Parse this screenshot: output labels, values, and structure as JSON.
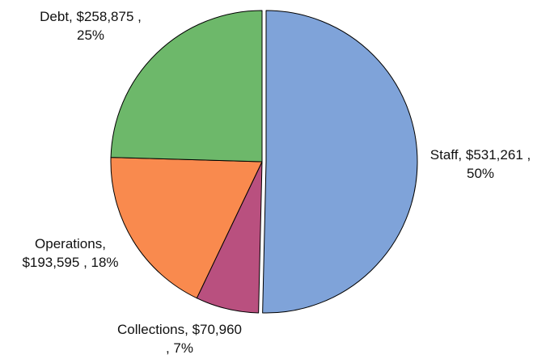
{
  "chart_data": {
    "type": "pie",
    "title": "",
    "slices": [
      {
        "label": "Staff",
        "value": 531261,
        "value_text": "$531,261",
        "percent_text": "50%",
        "color": "#7FA3D9",
        "exploded": true,
        "label_lines": [
          "Staff, $531,261 ,",
          "50%"
        ]
      },
      {
        "label": "Collections",
        "value": 70960,
        "value_text": "$70,960",
        "percent_text": "7%",
        "color": "#B9507F",
        "exploded": false,
        "label_lines": [
          "Collections, $70,960",
          ", 7%"
        ]
      },
      {
        "label": "Operations",
        "value": 193595,
        "value_text": "$193,595",
        "percent_text": "18%",
        "color": "#F98A4E",
        "exploded": false,
        "label_lines": [
          "Operations,",
          "$193,595 , 18%"
        ]
      },
      {
        "label": "Debt",
        "value": 258875,
        "value_text": "$258,875",
        "percent_text": "25%",
        "color": "#6DB86A",
        "exploded": false,
        "label_lines": [
          "Debt, $258,875 ,",
          "25%"
        ]
      }
    ],
    "start": "12 o'clock",
    "direction": "clockwise",
    "legend": "none",
    "data_labels": "outside"
  }
}
